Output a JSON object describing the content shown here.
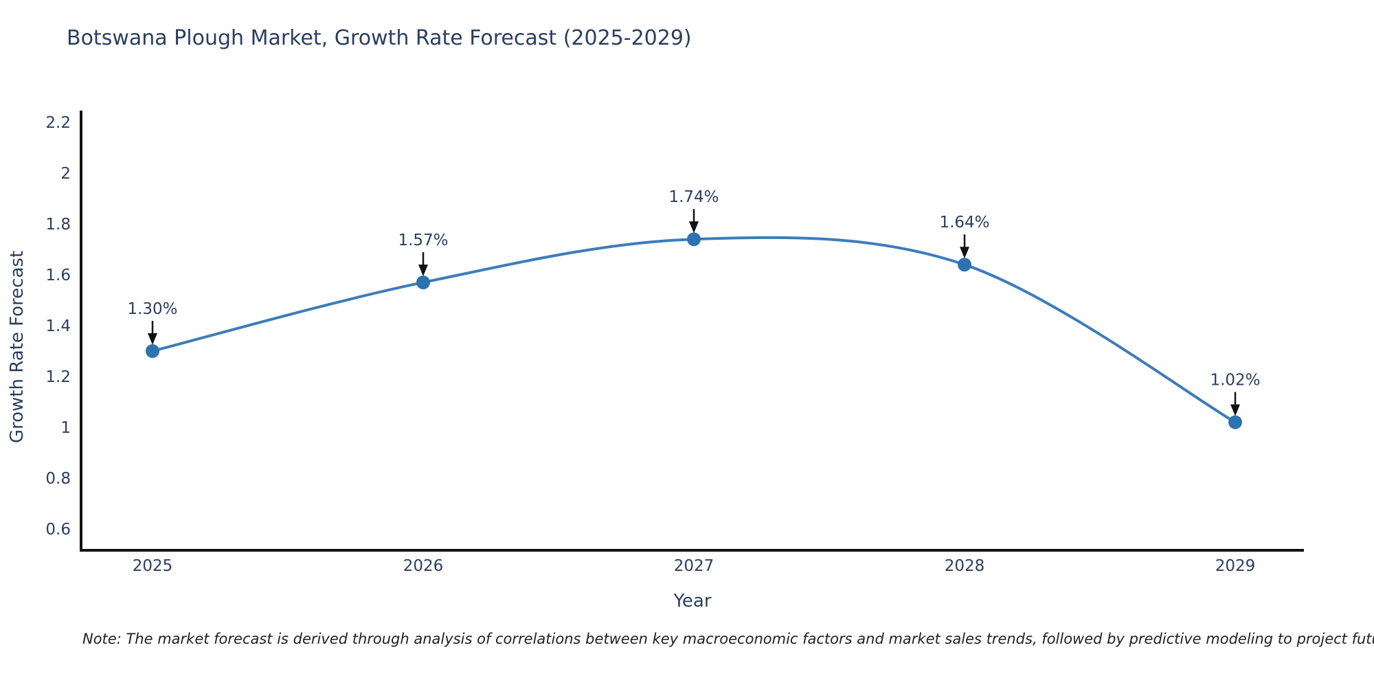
{
  "chart_data": {
    "type": "line",
    "line_shape": "spline",
    "title": "Botswana Plough Market, Growth Rate Forecast (2025-2029)",
    "xlabel": "Year",
    "ylabel": "Growth Rate Forecast",
    "x": [
      2025,
      2026,
      2027,
      2028,
      2029
    ],
    "values": [
      1.3,
      1.57,
      1.74,
      1.64,
      1.02
    ],
    "point_labels": [
      "1.30%",
      "1.57%",
      "1.74%",
      "1.64%",
      "1.02%"
    ],
    "x_tick_labels": [
      "2025",
      "2026",
      "2027",
      "2028",
      "2029"
    ],
    "y_tick_labels": [
      "0.6",
      "0.8",
      "1",
      "1.2",
      "1.4",
      "1.6",
      "1.8",
      "2",
      "2.2"
    ],
    "ylim": [
      0.52,
      2.24
    ],
    "grid": false,
    "legend_position": "none",
    "colors": {
      "line": "#3e7cba",
      "marker": "#2e72b0",
      "axis": "#111111",
      "text": "#2a3f5f",
      "arrow": "#111111"
    },
    "note": "Note: The market forecast is derived through analysis of correlations between key macroeconomic factors and market sales trends, followed by predictive modeling to project future sales"
  }
}
